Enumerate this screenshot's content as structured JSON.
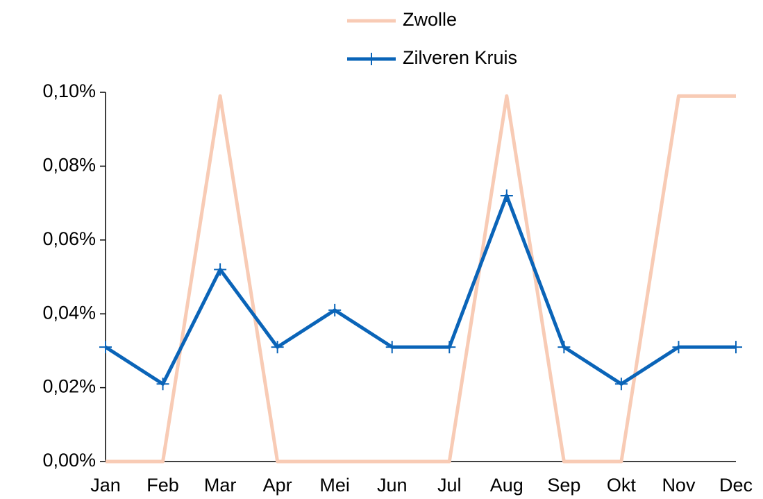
{
  "chart_data": {
    "type": "line",
    "categories": [
      "Jan",
      "Feb",
      "Mar",
      "Apr",
      "Mei",
      "Jun",
      "Jul",
      "Aug",
      "Sep",
      "Okt",
      "Nov",
      "Dec"
    ],
    "series": [
      {
        "name": "Zwolle",
        "color": "#f8cbb5",
        "values": [
          0,
          0,
          0.099,
          0,
          0,
          0,
          0,
          0.099,
          0,
          0,
          0.099,
          0.099
        ]
      },
      {
        "name": "Zilveren Kruis",
        "color": "#0a64b8",
        "values": [
          0.031,
          0.021,
          0.052,
          0.031,
          0.041,
          0.031,
          0.031,
          0.072,
          0.031,
          0.021,
          0.031,
          0.031
        ]
      }
    ],
    "ylim": [
      0,
      0.1
    ],
    "yticks": [
      {
        "value": 0,
        "label": "0,00%"
      },
      {
        "value": 0.02,
        "label": "0,02%"
      },
      {
        "value": 0.04,
        "label": "0,04%"
      },
      {
        "value": 0.06,
        "label": "0,06%"
      },
      {
        "value": 0.08,
        "label": "0,08%"
      },
      {
        "value": 0.1,
        "label": "0,10%"
      }
    ]
  }
}
